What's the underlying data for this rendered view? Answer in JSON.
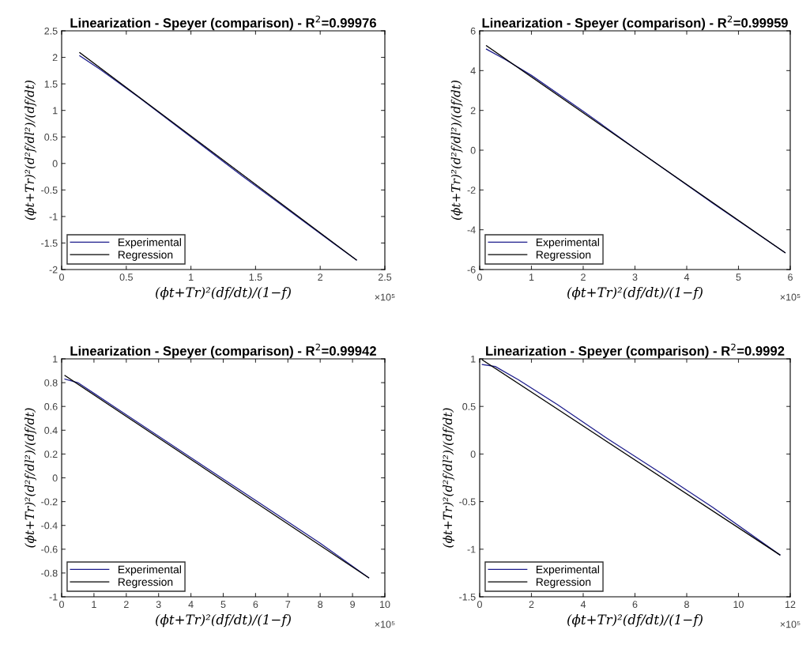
{
  "chart_data": [
    {
      "type": "line",
      "title": "Linearization - Speyer (comparison) - R$^{2}$=0.99976",
      "xlabel": "(ϕt+Tr)²(df/dt)/(1−f)",
      "ylabel": "(ϕt+Tr)²(d²f/dl²)/(df/dt)",
      "xlim": [
        0,
        2.5
      ],
      "xticks": [
        0,
        0.5,
        1,
        1.5,
        2,
        2.5
      ],
      "ylim": [
        -2,
        2.5
      ],
      "yticks": [
        -2,
        -1.5,
        -1,
        -0.5,
        0,
        0.5,
        1,
        1.5,
        2,
        2.5
      ],
      "annotations": [
        "×10⁵"
      ],
      "legend": "bottom left",
      "grid": false,
      "series": [
        {
          "name": "Experimental",
          "color": "#1c1c8c",
          "x": [
            0.14,
            0.3,
            0.6,
            1.0,
            1.4,
            1.8,
            2.1,
            2.28
          ],
          "values": [
            2.03,
            1.77,
            1.24,
            0.5,
            -0.24,
            -0.96,
            -1.5,
            -1.82
          ]
        },
        {
          "name": "Regression",
          "color": "#000000",
          "x": [
            0.14,
            2.28
          ],
          "values": [
            2.09,
            -1.82
          ]
        }
      ]
    },
    {
      "type": "line",
      "title": "Linearization - Speyer (comparison) - R$^{2}$=0.99959",
      "xlabel": "(ϕt+Tr)²(df/dt)/(1−f)",
      "ylabel": "(ϕt+Tr)²(d²f/dl²)/(df/dt)",
      "xlim": [
        0,
        6
      ],
      "xticks": [
        0,
        1,
        2,
        3,
        4,
        5,
        6
      ],
      "ylim": [
        -6,
        6
      ],
      "yticks": [
        -6,
        -4,
        -2,
        0,
        2,
        4,
        6
      ],
      "annotations": [
        "×10⁵"
      ],
      "legend": "bottom left",
      "grid": false,
      "series": [
        {
          "name": "Experimental",
          "color": "#1c1c8c",
          "x": [
            0.13,
            0.5,
            1.0,
            2.0,
            3.0,
            4.5,
            5.9
          ],
          "values": [
            5.08,
            4.55,
            3.76,
            1.96,
            0.09,
            -2.66,
            -5.15
          ]
        },
        {
          "name": "Regression",
          "color": "#000000",
          "x": [
            0.13,
            5.9
          ],
          "values": [
            5.25,
            -5.15
          ]
        }
      ]
    },
    {
      "type": "line",
      "title": "Linearization - Speyer (comparison) - R$^{2}$=0.99942",
      "xlabel": "(ϕt+Tr)²(df/dt)/(1−f)",
      "ylabel": "(ϕt+Tr)²(d²f/dl²)/(df/dt)",
      "xlim": [
        0,
        10
      ],
      "xticks": [
        0,
        1,
        2,
        3,
        4,
        5,
        6,
        7,
        8,
        9,
        10
      ],
      "ylim": [
        -1,
        1
      ],
      "yticks": [
        -1,
        -0.8,
        -0.6,
        -0.4,
        -0.2,
        0,
        0.2,
        0.4,
        0.6,
        0.8,
        1
      ],
      "annotations": [
        "×10⁵"
      ],
      "legend": "bottom left",
      "grid": false,
      "series": [
        {
          "name": "Experimental",
          "color": "#1c1c8c",
          "x": [
            0.1,
            0.5,
            1.0,
            2.0,
            4.0,
            6.0,
            8.0,
            9.5
          ],
          "values": [
            0.83,
            0.8,
            0.71,
            0.53,
            0.17,
            -0.19,
            -0.55,
            -0.84
          ]
        },
        {
          "name": "Regression",
          "color": "#000000",
          "x": [
            0.1,
            9.5
          ],
          "values": [
            0.86,
            -0.84
          ]
        }
      ]
    },
    {
      "type": "line",
      "title": "Linearization - Speyer (comparison) - R$^{2}$=0.9992",
      "xlabel": "(ϕt+Tr)²(df/dt)/(1−f)",
      "ylabel": "(ϕt+Tr)²(d²f/dl²)/(df/dt)",
      "xlim": [
        0,
        12
      ],
      "xticks": [
        0,
        2,
        4,
        6,
        8,
        10,
        12
      ],
      "ylim": [
        -1.5,
        1
      ],
      "yticks": [
        -1.5,
        -1,
        -0.5,
        0,
        0.5,
        1
      ],
      "annotations": [
        "×10⁵"
      ],
      "legend": "bottom left",
      "grid": false,
      "series": [
        {
          "name": "Experimental",
          "color": "#1c1c8c",
          "x": [
            0.1,
            0.6,
            1.5,
            3.0,
            5.0,
            7.0,
            9.0,
            11.6
          ],
          "values": [
            0.94,
            0.92,
            0.78,
            0.52,
            0.15,
            -0.2,
            -0.56,
            -1.06
          ]
        },
        {
          "name": "Regression",
          "color": "#000000",
          "x": [
            0.1,
            11.6
          ],
          "values": [
            0.99,
            -1.06
          ]
        }
      ]
    }
  ]
}
